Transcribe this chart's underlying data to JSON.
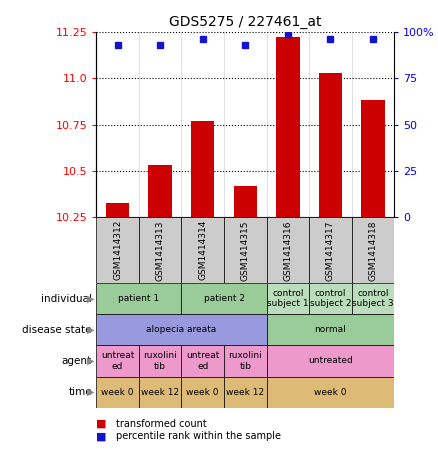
{
  "title": "GDS5275 / 227461_at",
  "samples": [
    "GSM1414312",
    "GSM1414313",
    "GSM1414314",
    "GSM1414315",
    "GSM1414316",
    "GSM1414317",
    "GSM1414318"
  ],
  "transformed_count": [
    10.33,
    10.53,
    10.77,
    10.42,
    11.22,
    11.03,
    10.88
  ],
  "percentile_rank": [
    93,
    93,
    96,
    93,
    99,
    96,
    96
  ],
  "ylim_left": [
    10.25,
    11.25
  ],
  "yticks_left": [
    10.25,
    10.5,
    10.75,
    11.0,
    11.25
  ],
  "yticks_right": [
    0,
    25,
    50,
    75,
    100
  ],
  "bar_color": "#cc0000",
  "dot_color": "#1414cc",
  "plot_bg": "#ffffff",
  "col_header_bg": "#cccccc",
  "annotation_rows": [
    {
      "label": "individual",
      "cells": [
        {
          "text": "patient 1",
          "span": 2,
          "color": "#99cc99"
        },
        {
          "text": "patient 2",
          "span": 2,
          "color": "#99cc99"
        },
        {
          "text": "control\nsubject 1",
          "span": 1,
          "color": "#bbddbb"
        },
        {
          "text": "control\nsubject 2",
          "span": 1,
          "color": "#bbddbb"
        },
        {
          "text": "control\nsubject 3",
          "span": 1,
          "color": "#bbddbb"
        }
      ]
    },
    {
      "label": "disease state",
      "cells": [
        {
          "text": "alopecia areata",
          "span": 4,
          "color": "#9999dd"
        },
        {
          "text": "normal",
          "span": 3,
          "color": "#99cc99"
        }
      ]
    },
    {
      "label": "agent",
      "cells": [
        {
          "text": "untreat\ned",
          "span": 1,
          "color": "#ee99cc"
        },
        {
          "text": "ruxolini\ntib",
          "span": 1,
          "color": "#ee99cc"
        },
        {
          "text": "untreat\ned",
          "span": 1,
          "color": "#ee99cc"
        },
        {
          "text": "ruxolini\ntib",
          "span": 1,
          "color": "#ee99cc"
        },
        {
          "text": "untreated",
          "span": 3,
          "color": "#ee99cc"
        }
      ]
    },
    {
      "label": "time",
      "cells": [
        {
          "text": "week 0",
          "span": 1,
          "color": "#ddbb77"
        },
        {
          "text": "week 12",
          "span": 1,
          "color": "#ddbb77"
        },
        {
          "text": "week 0",
          "span": 1,
          "color": "#ddbb77"
        },
        {
          "text": "week 12",
          "span": 1,
          "color": "#ddbb77"
        },
        {
          "text": "week 0",
          "span": 3,
          "color": "#ddbb77"
        }
      ]
    }
  ],
  "legend": [
    {
      "color": "#cc0000",
      "label": "transformed count"
    },
    {
      "color": "#1414cc",
      "label": "percentile rank within the sample"
    }
  ]
}
